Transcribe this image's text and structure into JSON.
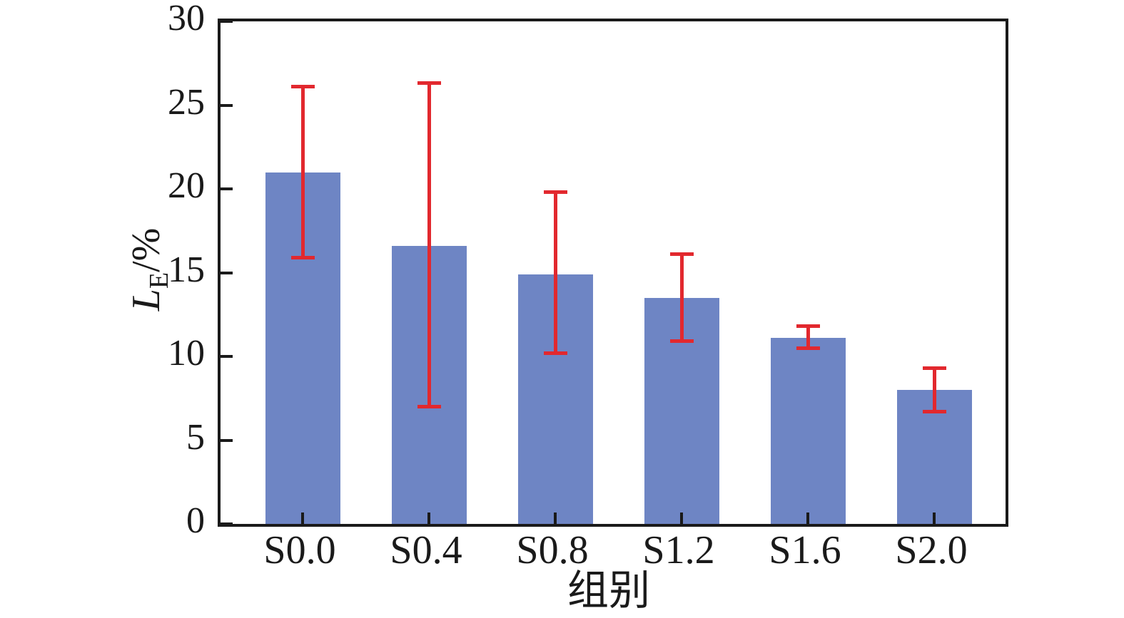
{
  "chart_data": {
    "type": "bar",
    "title": "",
    "xlabel": "组别",
    "ylabel": "L_E/%",
    "ylabel_parts": {
      "main": "L",
      "sub": "E",
      "rest": "/%"
    },
    "categories": [
      "S0.0",
      "S0.4",
      "S0.8",
      "S1.2",
      "S1.6",
      "S2.0"
    ],
    "values": [
      21.0,
      16.6,
      14.9,
      13.5,
      11.1,
      8.0
    ],
    "error_upper": [
      26.1,
      26.3,
      19.8,
      16.1,
      11.8,
      9.3
    ],
    "error_lower": [
      15.9,
      7.0,
      10.2,
      10.9,
      10.5,
      6.7
    ],
    "ylim": [
      0,
      30
    ],
    "yticks": [
      0,
      5,
      10,
      15,
      20,
      25,
      30
    ],
    "grid": false,
    "legend": null,
    "error_bars": true,
    "colors": {
      "bar_fill": "#6E85C4",
      "error_bar": "#E2282E",
      "axis": "#1A1A1A",
      "text": "#1A1A1A",
      "background": "#FFFFFF"
    }
  }
}
